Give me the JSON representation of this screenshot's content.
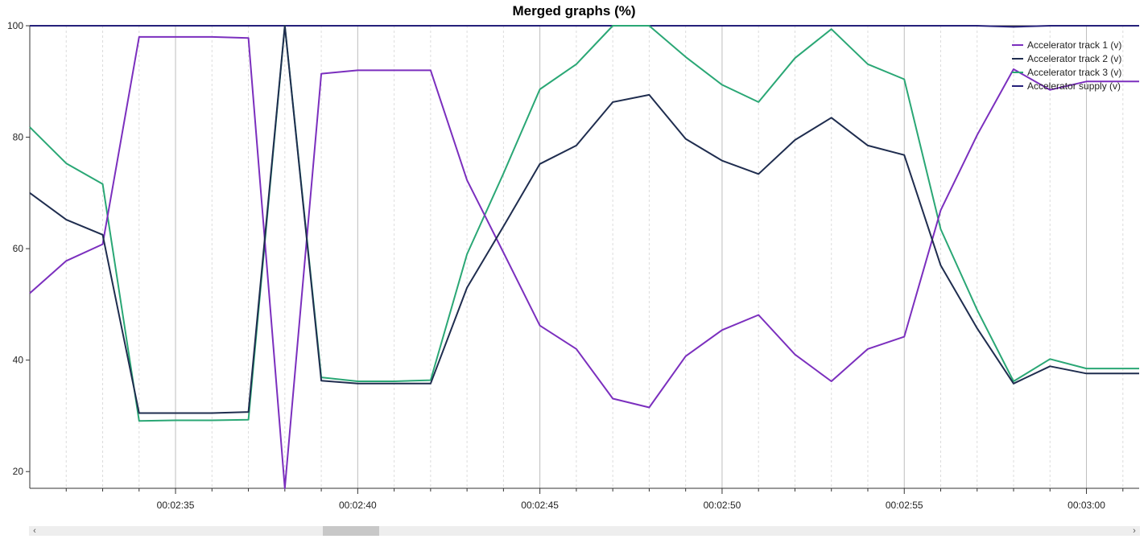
{
  "chart_data": {
    "type": "line",
    "title": "Merged graphs (%)",
    "x": [
      "00:02:31",
      "00:02:32",
      "00:02:33",
      "00:02:34",
      "00:02:35",
      "00:02:36",
      "00:02:37",
      "00:02:38",
      "00:02:39",
      "00:02:40",
      "00:02:41",
      "00:02:42",
      "00:02:43",
      "00:02:44",
      "00:02:45",
      "00:02:46",
      "00:02:47",
      "00:02:48",
      "00:02:49",
      "00:02:50",
      "00:02:51",
      "00:02:52",
      "00:02:53",
      "00:02:54",
      "00:02:55",
      "00:02:56",
      "00:02:57",
      "00:02:58",
      "00:02:59",
      "00:03:00",
      "00:03:01",
      "00:03:01.5"
    ],
    "x_tick_labels": [
      "00:02:35",
      "00:02:40",
      "00:02:45",
      "00:02:50",
      "00:02:55",
      "00:03:00"
    ],
    "y_ticks": [
      20,
      40,
      60,
      80,
      100
    ],
    "ylim": [
      17,
      100
    ],
    "grid": true,
    "legend_position": "top-right",
    "series": [
      {
        "name": "Accelerator track 1 (v)",
        "color": "#7b2fbe",
        "values": [
          52,
          57.8,
          60.8,
          98,
          98,
          98,
          97.8,
          17,
          91.4,
          92,
          92,
          92,
          72.3,
          59.3,
          46.2,
          42,
          33.1,
          31.5,
          40.7,
          45.4,
          48.1,
          41,
          36.2,
          42,
          44.2,
          66.9,
          80.4,
          92.2,
          88.5,
          90,
          90,
          90
        ]
      },
      {
        "name": "Accelerator track 2 (v)",
        "color": "#1f2d4f",
        "values": [
          70,
          65.2,
          62.5,
          30.5,
          30.5,
          30.5,
          30.7,
          100,
          36.3,
          35.8,
          35.8,
          35.8,
          53,
          64,
          75.2,
          78.5,
          86.3,
          87.6,
          79.7,
          75.8,
          73.4,
          79.5,
          83.5,
          78.5,
          76.8,
          57,
          45.7,
          35.8,
          38.9,
          37.6,
          37.6,
          37.6
        ]
      },
      {
        "name": "Accelerator track 3 (v)",
        "color": "#2aa775",
        "values": [
          81.8,
          75.3,
          71.6,
          29.1,
          29.2,
          29.2,
          29.3,
          100,
          36.9,
          36.2,
          36.2,
          36.4,
          59,
          73.5,
          88.6,
          93.1,
          100,
          100,
          94.4,
          89.4,
          86.3,
          94.2,
          99.4,
          93.1,
          90.4,
          63.5,
          49,
          36.2,
          40.2,
          38.5,
          38.5,
          38.5
        ]
      },
      {
        "name": "Accelerator supply (v)",
        "color": "#25207a",
        "values": [
          100,
          100,
          100,
          100,
          100,
          100,
          100,
          100,
          100,
          100,
          100,
          100,
          100,
          100,
          100,
          100,
          100,
          100,
          100,
          100,
          100,
          100,
          100,
          100,
          100,
          100,
          100,
          99.8,
          100,
          100,
          100,
          100
        ]
      }
    ]
  }
}
